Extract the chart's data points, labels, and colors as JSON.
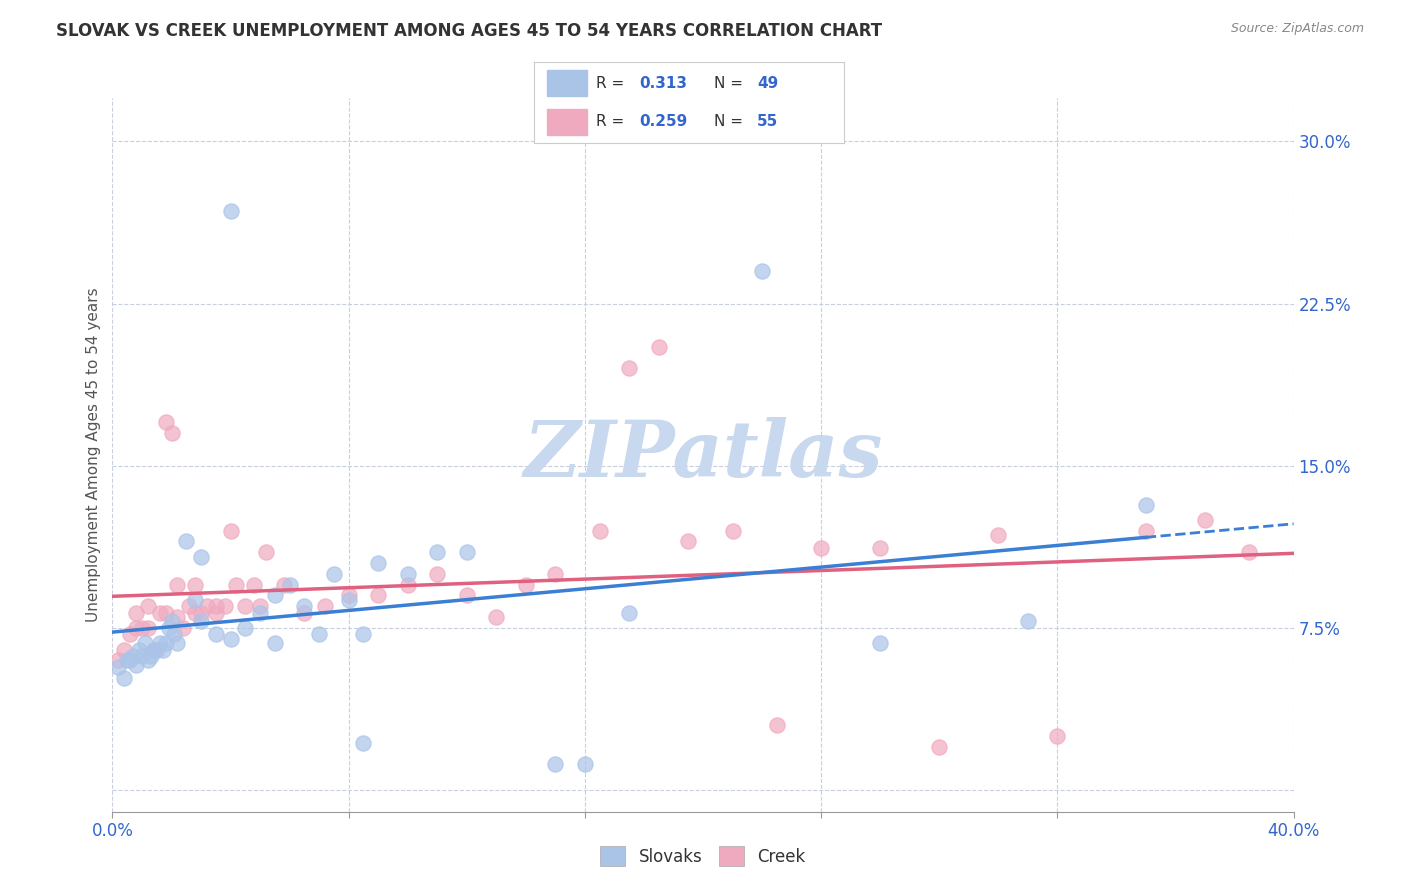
{
  "title": "SLOVAK VS CREEK UNEMPLOYMENT AMONG AGES 45 TO 54 YEARS CORRELATION CHART",
  "source": "Source: ZipAtlas.com",
  "ylabel": "Unemployment Among Ages 45 to 54 years",
  "xlim": [
    0.0,
    0.4
  ],
  "ylim": [
    -0.01,
    0.32
  ],
  "xticks": [
    0.0,
    0.08,
    0.16,
    0.24,
    0.32,
    0.4
  ],
  "yticks": [
    0.0,
    0.075,
    0.15,
    0.225,
    0.3
  ],
  "slovak_R": "0.313",
  "slovak_N": "49",
  "creek_R": "0.259",
  "creek_N": "55",
  "slovak_color": "#aac4e8",
  "creek_color": "#f0aac0",
  "slovak_line_color": "#3b7fd4",
  "creek_line_color": "#e06080",
  "background_color": "#ffffff",
  "grid_color": "#c8d0e0",
  "legend_color": "#3366cc",
  "watermark_color": "#c8d8ee",
  "slovak_x": [
    0.002,
    0.004,
    0.005,
    0.006,
    0.007,
    0.008,
    0.009,
    0.01,
    0.011,
    0.012,
    0.013,
    0.014,
    0.015,
    0.016,
    0.017,
    0.018,
    0.019,
    0.02,
    0.021,
    0.022,
    0.025,
    0.028,
    0.03,
    0.035,
    0.04,
    0.045,
    0.05,
    0.055,
    0.06,
    0.065,
    0.07,
    0.075,
    0.08,
    0.085,
    0.09,
    0.1,
    0.11,
    0.12,
    0.15,
    0.16,
    0.175,
    0.22,
    0.26,
    0.31,
    0.35,
    0.03,
    0.04,
    0.055,
    0.085
  ],
  "slovak_y": [
    0.057,
    0.052,
    0.06,
    0.06,
    0.062,
    0.058,
    0.065,
    0.062,
    0.068,
    0.06,
    0.062,
    0.065,
    0.065,
    0.068,
    0.065,
    0.068,
    0.075,
    0.078,
    0.072,
    0.068,
    0.115,
    0.088,
    0.108,
    0.072,
    0.268,
    0.075,
    0.082,
    0.09,
    0.095,
    0.085,
    0.072,
    0.1,
    0.088,
    0.022,
    0.105,
    0.1,
    0.11,
    0.11,
    0.012,
    0.012,
    0.082,
    0.24,
    0.068,
    0.078,
    0.132,
    0.078,
    0.07,
    0.068,
    0.072
  ],
  "creek_x": [
    0.002,
    0.004,
    0.006,
    0.008,
    0.01,
    0.012,
    0.014,
    0.016,
    0.018,
    0.02,
    0.022,
    0.024,
    0.026,
    0.028,
    0.03,
    0.032,
    0.035,
    0.038,
    0.04,
    0.042,
    0.045,
    0.048,
    0.052,
    0.058,
    0.065,
    0.072,
    0.08,
    0.09,
    0.1,
    0.11,
    0.12,
    0.13,
    0.14,
    0.15,
    0.165,
    0.175,
    0.185,
    0.195,
    0.21,
    0.225,
    0.24,
    0.26,
    0.28,
    0.3,
    0.32,
    0.35,
    0.37,
    0.385,
    0.008,
    0.012,
    0.018,
    0.022,
    0.028,
    0.035,
    0.05
  ],
  "creek_y": [
    0.06,
    0.065,
    0.072,
    0.082,
    0.075,
    0.085,
    0.065,
    0.082,
    0.17,
    0.165,
    0.095,
    0.075,
    0.085,
    0.095,
    0.082,
    0.085,
    0.082,
    0.085,
    0.12,
    0.095,
    0.085,
    0.095,
    0.11,
    0.095,
    0.082,
    0.085,
    0.09,
    0.09,
    0.095,
    0.1,
    0.09,
    0.08,
    0.095,
    0.1,
    0.12,
    0.195,
    0.205,
    0.115,
    0.12,
    0.03,
    0.112,
    0.112,
    0.02,
    0.118,
    0.025,
    0.12,
    0.125,
    0.11,
    0.075,
    0.075,
    0.082,
    0.08,
    0.082,
    0.085,
    0.085
  ]
}
